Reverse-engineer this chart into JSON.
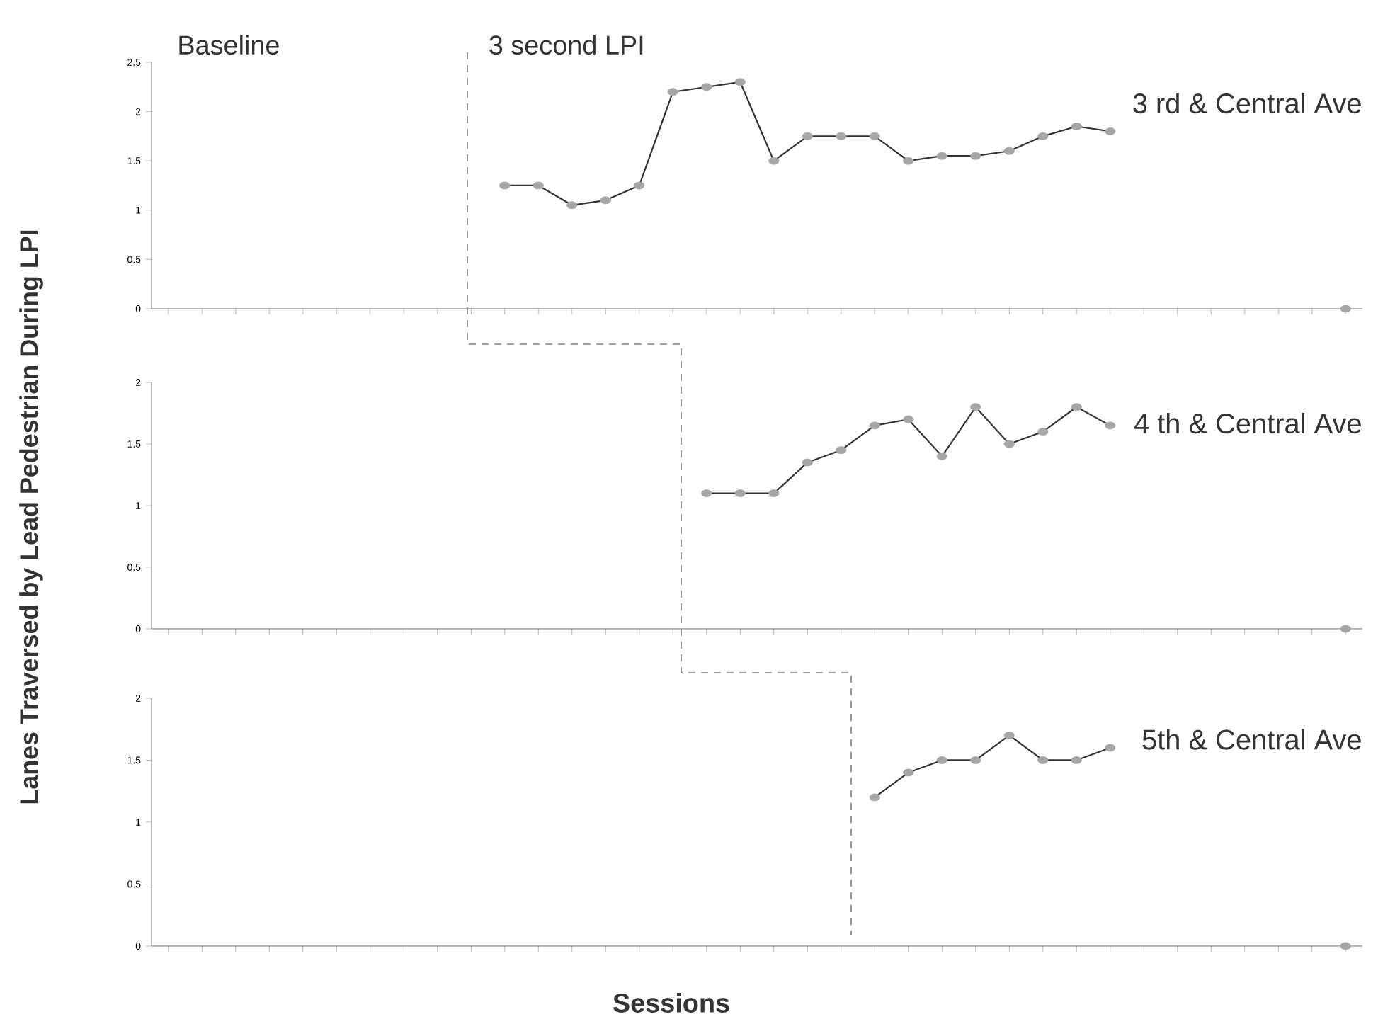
{
  "chart_data": [
    {
      "type": "line",
      "title": "3 rd & Central Ave",
      "ylabel": "Lanes Traversed by Lead Pedestrian During LPI",
      "annotations": [
        "Baseline",
        "3 second LPI"
      ],
      "categories": [
        null,
        null,
        null,
        null,
        null,
        null,
        null,
        null,
        null,
        null,
        null,
        null,
        null,
        null,
        null,
        null,
        null,
        null,
        null,
        null,
        null,
        null,
        null,
        null,
        null,
        null,
        null,
        null,
        null,
        null,
        null,
        null,
        null,
        null,
        null,
        null
      ],
      "series": [
        {
          "color": "#a6a6a6",
          "values": [
            null,
            null,
            null,
            null,
            null,
            null,
            null,
            null,
            null,
            null,
            1.25,
            1.25,
            1.05,
            1.1,
            1.25,
            2.2,
            2.25,
            2.3,
            1.5,
            1.75,
            1.75,
            1.75,
            1.5,
            1.55,
            1.55,
            1.6,
            1.75,
            1.85,
            1.8,
            null,
            null,
            null,
            null,
            null,
            null,
            0
          ]
        }
      ],
      "ylim": [
        0,
        2.5
      ],
      "yticks": [
        0,
        0.5,
        1,
        1.5,
        2,
        2.5
      ],
      "marker": "circle",
      "tick_labels": "y",
      "grid": false
    },
    {
      "type": "line",
      "title": "4 th & Central Ave",
      "categories": [
        null,
        null,
        null,
        null,
        null,
        null,
        null,
        null,
        null,
        null,
        null,
        null,
        null,
        null,
        null,
        null,
        null,
        null,
        null,
        null,
        null,
        null,
        null,
        null,
        null,
        null,
        null,
        null,
        null,
        null,
        null,
        null,
        null,
        null,
        null,
        null
      ],
      "series": [
        {
          "color": "#a6a6a6",
          "values": [
            null,
            null,
            null,
            null,
            null,
            null,
            null,
            null,
            null,
            null,
            null,
            null,
            null,
            null,
            null,
            null,
            1.1,
            1.1,
            1.1,
            1.35,
            1.45,
            1.65,
            1.7,
            1.4,
            1.8,
            1.5,
            1.6,
            1.8,
            1.65,
            null,
            null,
            null,
            null,
            null,
            null,
            0
          ]
        }
      ],
      "ylim": [
        0,
        2
      ],
      "yticks": [
        0,
        0.5,
        1,
        1.5,
        2
      ],
      "marker": "circle",
      "tick_labels": "y",
      "grid": false
    },
    {
      "type": "line",
      "title": "5th & Central Ave",
      "xlabel": "Sessions",
      "categories": [
        null,
        null,
        null,
        null,
        null,
        null,
        null,
        null,
        null,
        null,
        null,
        null,
        null,
        null,
        null,
        null,
        null,
        null,
        null,
        null,
        null,
        null,
        null,
        null,
        null,
        null,
        null,
        null,
        null,
        null,
        null,
        null,
        null,
        null,
        null,
        null
      ],
      "series": [
        {
          "color": "#a6a6a6",
          "values": [
            null,
            null,
            null,
            null,
            null,
            null,
            null,
            null,
            null,
            null,
            null,
            null,
            null,
            null,
            null,
            null,
            null,
            null,
            null,
            null,
            null,
            1.2,
            1.4,
            1.5,
            1.5,
            1.7,
            1.5,
            1.5,
            1.6,
            null,
            null,
            null,
            null,
            null,
            null,
            0
          ]
        }
      ],
      "ylim": [
        0,
        2
      ],
      "yticks": [
        0,
        0.5,
        1,
        1.5,
        2
      ],
      "marker": "circle",
      "tick_labels": "y",
      "grid": false
    }
  ]
}
